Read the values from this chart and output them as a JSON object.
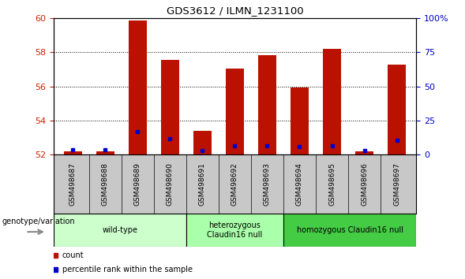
{
  "title": "GDS3612 / ILMN_1231100",
  "samples": [
    "GSM498687",
    "GSM498688",
    "GSM498689",
    "GSM498690",
    "GSM498691",
    "GSM498692",
    "GSM498693",
    "GSM498694",
    "GSM498695",
    "GSM498696",
    "GSM498697"
  ],
  "red_values": [
    52.2,
    52.2,
    59.85,
    57.55,
    53.42,
    57.05,
    57.82,
    55.93,
    58.22,
    52.2,
    57.3
  ],
  "blue_values": [
    52.3,
    52.3,
    53.35,
    52.95,
    52.27,
    52.55,
    52.55,
    52.48,
    52.55,
    52.27,
    52.85
  ],
  "ylim": [
    52,
    60
  ],
  "yticks": [
    52,
    54,
    56,
    58,
    60
  ],
  "right_yticks": [
    0,
    25,
    50,
    75,
    100
  ],
  "right_ylim": [
    0,
    100
  ],
  "groups": [
    {
      "label": "wild-type",
      "start": 0,
      "end": 3,
      "color": "#ccffcc"
    },
    {
      "label": "heterozygous\nClaudin16 null",
      "start": 4,
      "end": 6,
      "color": "#aaffaa"
    },
    {
      "label": "homozygous Claudin16 null",
      "start": 7,
      "end": 10,
      "color": "#44cc44"
    }
  ],
  "bar_width": 0.55,
  "red_color": "#bb1100",
  "blue_color": "#0000cc",
  "base": 52,
  "left_tick_color": "#cc2200",
  "right_tick_color": "#0000cc",
  "sample_band_color": "#c8c8c8",
  "plot_bg": "white",
  "grid_color": "black"
}
